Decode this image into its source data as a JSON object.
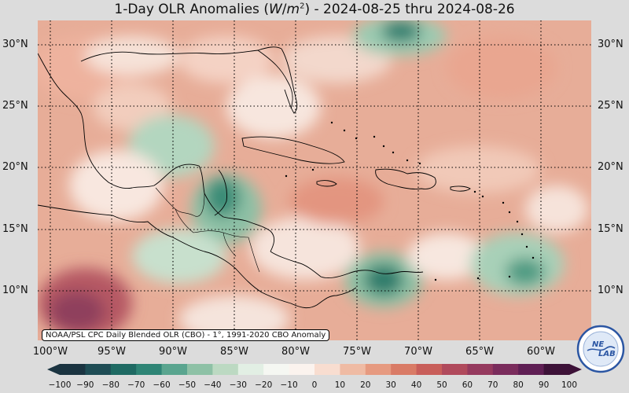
{
  "title": {
    "main": "1-Day OLR Anomalies (",
    "unit_w": "W",
    "unit_slash": "/",
    "unit_m": "m",
    "unit_exp": "2",
    "rest": ") - 2024-08-25 thru 2024-08-26"
  },
  "lat_labels": [
    "30°N",
    "25°N",
    "20°N",
    "15°N",
    "10°N"
  ],
  "lon_labels": [
    "100°W",
    "95°W",
    "90°W",
    "85°W",
    "80°W",
    "75°W",
    "70°W",
    "65°W",
    "60°W"
  ],
  "credit": "NOAA/PSL CPC Daily Blended OLR (CBO) - 1°, 1991-2020 CBO Anomaly",
  "colorbar": {
    "ticks": [
      "−100",
      "−90",
      "−80",
      "−70",
      "−60",
      "−50",
      "−40",
      "−30",
      "−20",
      "−10",
      "0",
      "10",
      "20",
      "30",
      "40",
      "50",
      "60",
      "70",
      "80",
      "90",
      "100"
    ],
    "colors": [
      "#1b3441",
      "#1f4d55",
      "#1f6a63",
      "#2f8576",
      "#5aa58f",
      "#8ec1a6",
      "#bcd9c2",
      "#e2efe4",
      "#f5f7f2",
      "#fbf3ee",
      "#f8ddd0",
      "#efbba4",
      "#e69a80",
      "#d97b66",
      "#c85e5a",
      "#b04a5c",
      "#953a5e",
      "#7a2c5c",
      "#5f1f54",
      "#3d1238"
    ]
  },
  "logo": {
    "text_top": "NE",
    "text_bottom": "LAB",
    "ring_color": "#2b56a3"
  }
}
